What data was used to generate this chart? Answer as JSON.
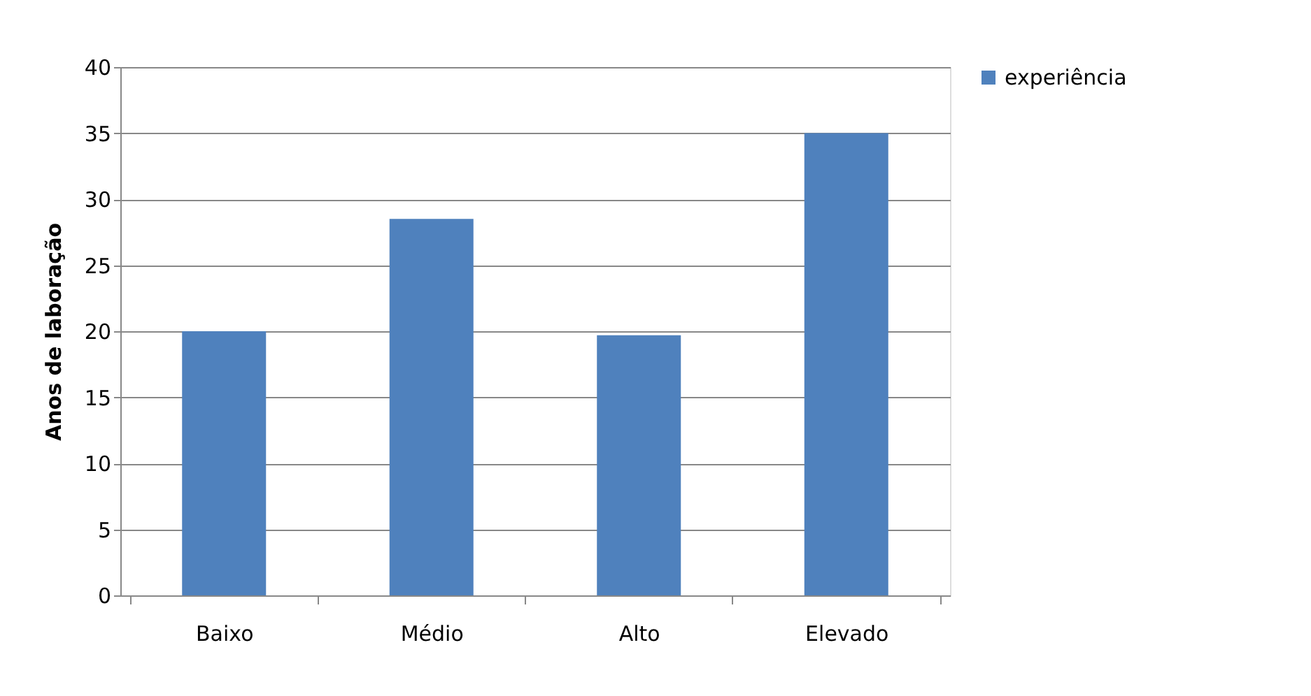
{
  "chart_data": {
    "type": "bar",
    "ylabel": "Anos de laboração",
    "categories": [
      "Baixo",
      "Médio",
      "Alto",
      "Elevado"
    ],
    "series": [
      {
        "name": "experiência",
        "color": "#4f81bd",
        "values": [
          20,
          28.5,
          19.7,
          35
        ]
      }
    ],
    "ylim": [
      0,
      40
    ],
    "yticks": [
      0,
      5,
      10,
      15,
      20,
      25,
      30,
      35,
      40
    ],
    "grid": "y",
    "legend": "right"
  }
}
